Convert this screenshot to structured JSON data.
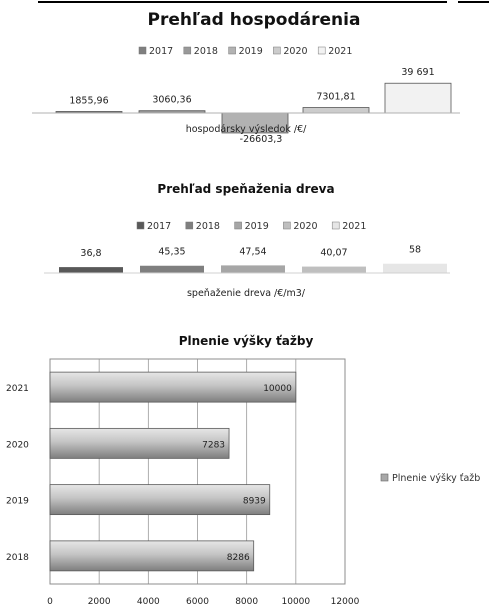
{
  "charts": [
    {
      "title": "Prehľad hospodárenia",
      "category_label": "hospodársky výsledok /€/",
      "legend": [
        {
          "name": "2017",
          "color": "#7f7f7f"
        },
        {
          "name": "2018",
          "color": "#999999"
        },
        {
          "name": "2019",
          "color": "#b2b2b2"
        },
        {
          "name": "2020",
          "color": "#cccccc"
        },
        {
          "name": "2021",
          "color": "#f2f2f2"
        }
      ],
      "value_labels": [
        "1855,96",
        "3060,36",
        "-26603,3",
        "7301,81",
        "39 691"
      ]
    },
    {
      "title": "Prehľad speňaženia dreva",
      "category_label": "speňaženie dreva /€/m3/",
      "legend": [
        {
          "name": "2017",
          "color": "#595959"
        },
        {
          "name": "2018",
          "color": "#7f7f7f"
        },
        {
          "name": "2019",
          "color": "#a6a6a6"
        },
        {
          "name": "2020",
          "color": "#bfbfbf"
        },
        {
          "name": "2021",
          "color": "#e6e6e6"
        }
      ],
      "value_labels": [
        "36,8",
        "45,35",
        "47,54",
        "40,07",
        "58"
      ]
    },
    {
      "title": "Plnenie výšky ťažby",
      "legend_label": "Plnenie výšky ťažb",
      "x_ticks": [
        "0",
        "2000",
        "4000",
        "6000",
        "8000",
        "10000",
        "12000"
      ],
      "y_labels": [
        "2021",
        "2020",
        "2019",
        "2018"
      ],
      "value_labels": [
        "10000",
        "7283",
        "8939",
        "8286"
      ]
    }
  ],
  "chart_data": [
    {
      "type": "bar",
      "title": "Prehľad hospodárenia",
      "categories": [
        "hospodársky výsledok /€/"
      ],
      "series": [
        {
          "name": "2017",
          "values": [
            1855.96
          ]
        },
        {
          "name": "2018",
          "values": [
            3060.36
          ]
        },
        {
          "name": "2019",
          "values": [
            -26603.3
          ]
        },
        {
          "name": "2020",
          "values": [
            7301.81
          ]
        },
        {
          "name": "2021",
          "values": [
            39691
          ]
        }
      ],
      "legend": "top"
    },
    {
      "type": "bar",
      "title": "Prehľad speňaženia dreva",
      "categories": [
        "speňaženie dreva /€/m3/"
      ],
      "series": [
        {
          "name": "2017",
          "values": [
            36.8
          ]
        },
        {
          "name": "2018",
          "values": [
            45.35
          ]
        },
        {
          "name": "2019",
          "values": [
            47.54
          ]
        },
        {
          "name": "2020",
          "values": [
            40.07
          ]
        },
        {
          "name": "2021",
          "values": [
            58
          ]
        }
      ],
      "legend": "top"
    },
    {
      "type": "bar",
      "orientation": "horizontal",
      "title": "Plnenie výšky ťažby",
      "categories": [
        "2021",
        "2020",
        "2019",
        "2018"
      ],
      "series": [
        {
          "name": "Plnenie výšky ťažb",
          "values": [
            10000,
            7283,
            8939,
            8286
          ]
        }
      ],
      "xlim": [
        0,
        12000
      ],
      "grid": true,
      "legend": "right"
    }
  ]
}
